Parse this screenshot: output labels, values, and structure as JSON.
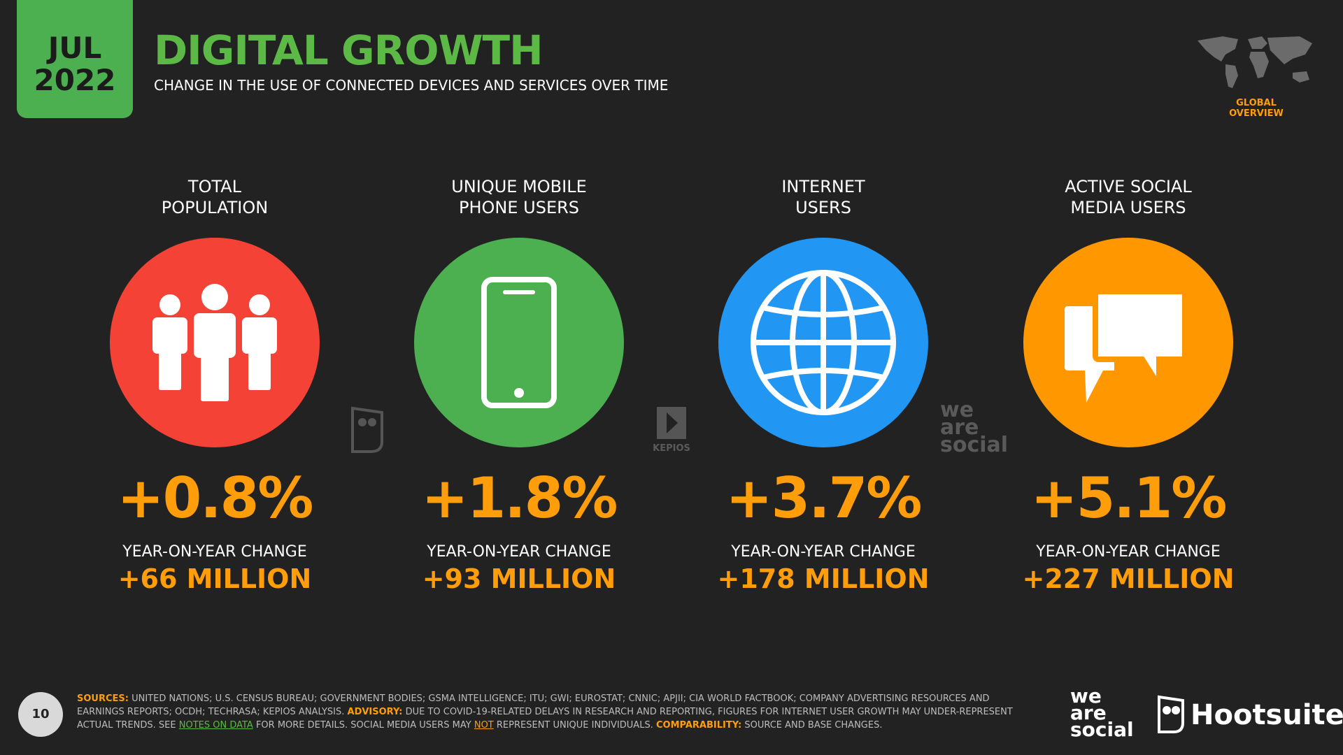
{
  "header": {
    "month": "JUL",
    "year": "2022",
    "title": "DIGITAL GROWTH",
    "subtitle": "CHANGE IN THE USE OF CONNECTED DEVICES AND SERVICES OVER TIME",
    "badge": "GLOBAL OVERVIEW"
  },
  "cards": [
    {
      "label_lines": [
        "TOTAL",
        "POPULATION"
      ],
      "percent": "+0.8%",
      "change_label": "YEAR-ON-YEAR CHANGE",
      "change": "+66 MILLION"
    },
    {
      "label_lines": [
        "UNIQUE MOBILE",
        "PHONE USERS"
      ],
      "percent": "+1.8%",
      "change_label": "YEAR-ON-YEAR CHANGE",
      "change": "+93 MILLION"
    },
    {
      "label_lines": [
        "INTERNET",
        "USERS"
      ],
      "percent": "+3.7%",
      "change_label": "YEAR-ON-YEAR CHANGE",
      "change": "+178 MILLION"
    },
    {
      "label_lines": [
        "ACTIVE SOCIAL",
        "MEDIA USERS"
      ],
      "percent": "+5.1%",
      "change_label": "YEAR-ON-YEAR CHANGE",
      "change": "+227 MILLION"
    }
  ],
  "watermarks": {
    "kepios": "KEPIOS",
    "wearesocial": [
      "we",
      "are",
      "social"
    ]
  },
  "footer": {
    "page": "10",
    "notes": [
      "SOURCES:",
      "UNITED NATIONS; U.S. CENSUS BUREAU; GOVERNMENT BODIES; GSMA INTELLIGENCE; ITU; GWI; EUROSTAT; CNNIC; APJII; CIA WORLD FACTBOOK; COMPANY ADVERTISING RESOURCES AND EARNINGS REPORTS; OCDH; TECHRASA; KEPIOS ANALYSIS.",
      "ADVISORY:",
      "DUE TO COVID-19-RELATED DELAYS IN RESEARCH AND REPORTING, FIGURES FOR INTERNET USER GROWTH MAY UNDER-REPRESENT ACTUAL TRENDS. SEE",
      "NOTES ON DATA",
      "FOR MORE DETAILS. SOCIAL MEDIA USERS MAY",
      "NOT",
      "REPRESENT UNIQUE INDIVIDUALS.",
      "COMPARABILITY:",
      "SOURCE AND BASE CHANGES."
    ],
    "logo_wearesocial": [
      "we",
      "are",
      "social"
    ],
    "logo_hootsuite": "Hootsuite"
  }
}
